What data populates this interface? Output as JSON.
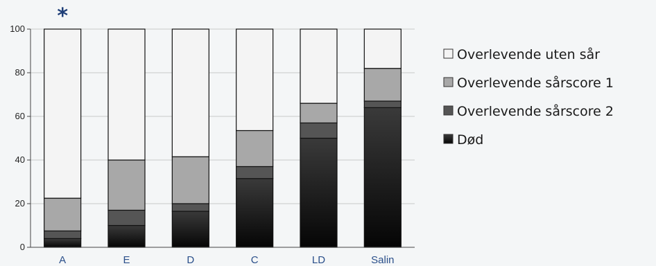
{
  "chart_data": {
    "type": "bar",
    "stacked": true,
    "normalized_percent": true,
    "categories": [
      "A",
      "E",
      "D",
      "C",
      "LD",
      "Salin"
    ],
    "ylim": [
      0,
      100
    ],
    "yticks": [
      0,
      20,
      40,
      60,
      80,
      100
    ],
    "grid": true,
    "legend_position": "right",
    "annotations": [
      {
        "category": "A",
        "text": "*"
      }
    ],
    "series": [
      {
        "name": "Død",
        "color": "#1b1b1b",
        "values": [
          4,
          10,
          16.5,
          31.5,
          50,
          64
        ]
      },
      {
        "name": "Overlevende sårscore 2",
        "color": "#555555",
        "values": [
          3.5,
          7,
          3.5,
          5.5,
          7,
          3
        ]
      },
      {
        "name": "Overlevende sårscore 1",
        "color": "#a8a8a8",
        "values": [
          15,
          23,
          21.5,
          16.5,
          9,
          15
        ]
      },
      {
        "name": "Overlevende uten sår",
        "color": "#f4f4f4",
        "values": [
          77.5,
          60,
          58.5,
          46.5,
          34,
          18
        ]
      }
    ]
  }
}
